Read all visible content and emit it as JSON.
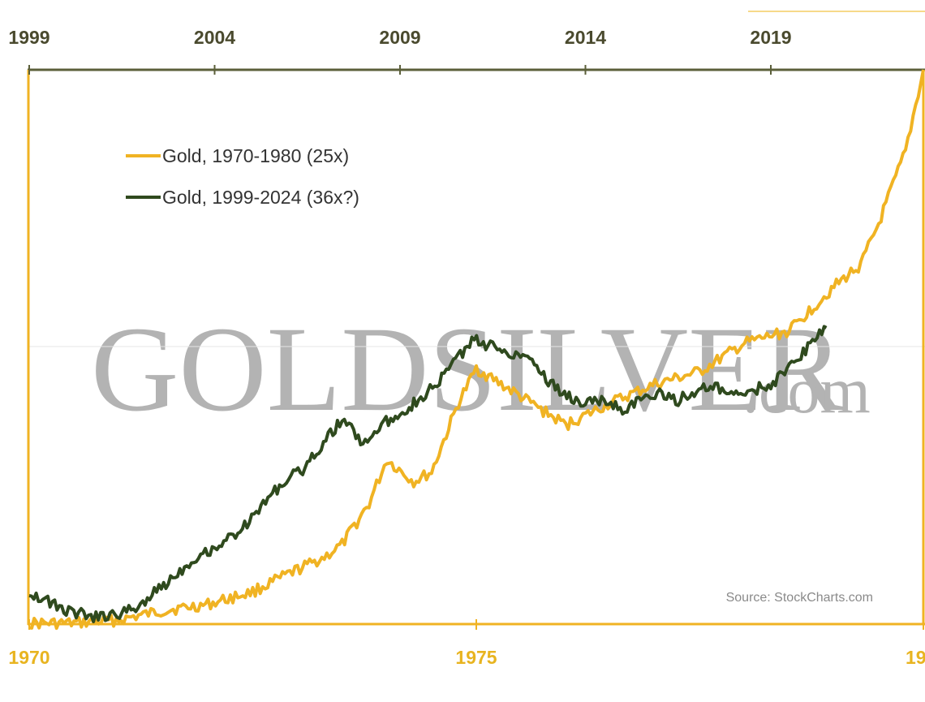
{
  "chart_data": {
    "type": "line",
    "top_axis": {
      "ticks": [
        "1999",
        "2004",
        "2009",
        "2014",
        "2019"
      ]
    },
    "bottom_axis": {
      "ticks": [
        "1970",
        "1975",
        "19"
      ]
    },
    "grid": false,
    "legend_position": "top-left",
    "watermark": {
      "main": "GOLDSILVER",
      "suffix": ".com"
    },
    "source": "Source: StockCharts.com",
    "colors": {
      "gold_1970": "#f0b323",
      "gold_1999": "#2f4a1e",
      "axis_top": "#5b5f3a",
      "axis_other": "#f0b323"
    },
    "series": [
      {
        "name": "Gold, 1970-1980 (25x)",
        "x_axis": "bottom",
        "x": [
          1970.0,
          1970.5,
          1971.0,
          1971.5,
          1972.0,
          1972.5,
          1973.0,
          1973.3,
          1973.5,
          1973.8,
          1974.0,
          1974.3,
          1974.5,
          1974.8,
          1975.0,
          1975.5,
          1976.0,
          1976.5,
          1977.0,
          1977.5,
          1978.0,
          1978.5,
          1979.0,
          1979.3,
          1979.5,
          1979.8,
          1980.0
        ],
        "y": [
          0.0,
          0.0,
          0.01,
          0.04,
          0.06,
          0.1,
          0.17,
          0.21,
          0.25,
          0.38,
          0.52,
          0.45,
          0.48,
          0.7,
          0.81,
          0.72,
          0.63,
          0.7,
          0.76,
          0.8,
          0.89,
          0.93,
          1.07,
          1.14,
          1.27,
          1.5,
          1.76
        ]
      },
      {
        "name": "Gold, 1999-2024 (36x?)",
        "x_axis": "top",
        "x": [
          1999.0,
          1999.5,
          2000.0,
          2000.8,
          2001.5,
          2002.0,
          2002.5,
          2003.0,
          2003.5,
          2004.0,
          2004.5,
          2005.0,
          2005.5,
          2006.0,
          2006.5,
          2007.0,
          2007.5,
          2008.0,
          2008.5,
          2009.0,
          2009.5,
          2010.0,
          2010.5,
          2011.0,
          2011.5,
          2012.0,
          2012.5,
          2013.0,
          2013.5,
          2014.0,
          2014.5,
          2015.0,
          2015.5,
          2016.0,
          2016.5,
          2017.0,
          2017.5,
          2018.0,
          2018.5,
          2019.0,
          2019.5,
          2020.0,
          2020.5
        ],
        "y": [
          0.1,
          0.07,
          0.04,
          0.02,
          0.03,
          0.06,
          0.11,
          0.16,
          0.21,
          0.24,
          0.28,
          0.33,
          0.41,
          0.46,
          0.5,
          0.59,
          0.65,
          0.57,
          0.63,
          0.67,
          0.71,
          0.76,
          0.84,
          0.9,
          0.88,
          0.86,
          0.85,
          0.77,
          0.72,
          0.7,
          0.71,
          0.68,
          0.71,
          0.73,
          0.71,
          0.74,
          0.75,
          0.72,
          0.74,
          0.76,
          0.81,
          0.88,
          0.94
        ]
      }
    ]
  }
}
